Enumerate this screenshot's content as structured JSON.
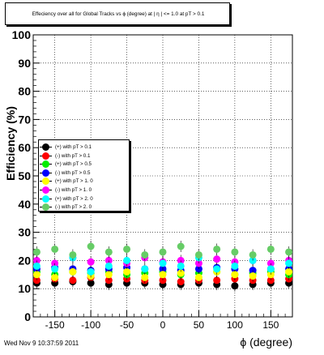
{
  "title": "Effeciency over all for Global Tracks vs ϕ (degree) at |  η | <= 1.0 at pT > 0.1",
  "datestamp": "Wed Nov  9 10:37:59 2011",
  "chart_data": {
    "type": "scatter",
    "xlabel": "ϕ (degree)",
    "ylabel": "Efficiency (%)",
    "xlim": [
      -180,
      180
    ],
    "ylim": [
      0,
      100
    ],
    "xticks": [
      -150,
      -100,
      -50,
      0,
      50,
      100,
      150
    ],
    "yticks": [
      0,
      10,
      20,
      30,
      40,
      50,
      60,
      70,
      80,
      90,
      100
    ],
    "grid": true,
    "legend_position": "middle-left",
    "series": [
      {
        "name": "(+) with pT > 0.1",
        "color": "#000000",
        "x": [
          -175,
          -150,
          -125,
          -100,
          -75,
          -50,
          -25,
          0,
          25,
          50,
          75,
          100,
          125,
          150,
          175
        ],
        "y": [
          12,
          12,
          12.5,
          12,
          11.5,
          12,
          12,
          11.5,
          11.5,
          12,
          11.5,
          11,
          11.5,
          12,
          12
        ]
      },
      {
        "name": "(-) with pT > 0.1",
        "color": "#ff0000",
        "x": [
          -175,
          -150,
          -125,
          -100,
          -75,
          -50,
          -25,
          0,
          25,
          50,
          75,
          100,
          125,
          150,
          175
        ],
        "y": [
          13,
          13.5,
          13,
          14,
          13,
          13.5,
          13,
          13,
          12.5,
          13,
          13,
          13.5,
          13,
          13,
          13.5
        ]
      },
      {
        "name": "(+) with pT > 0.5",
        "color": "#00ee00",
        "x": [
          -175,
          -150,
          -125,
          -100,
          -75,
          -50,
          -25,
          0,
          25,
          50,
          75,
          100,
          125,
          150,
          175
        ],
        "y": [
          16,
          15,
          16,
          15.5,
          16,
          15,
          15.5,
          16,
          15,
          15.5,
          16,
          15,
          15.5,
          16,
          15
        ]
      },
      {
        "name": "(-) with pT > 0.5",
        "color": "#0000ff",
        "x": [
          -175,
          -150,
          -125,
          -100,
          -75,
          -50,
          -25,
          0,
          25,
          50,
          75,
          100,
          125,
          150,
          175
        ],
        "y": [
          17,
          17.5,
          17,
          16.5,
          17,
          17.5,
          17,
          17,
          16.5,
          17,
          17.5,
          17,
          16.5,
          17,
          17
        ]
      },
      {
        "name": "(+) with pT > 1. 0",
        "color": "#ffff00",
        "x": [
          -175,
          -150,
          -125,
          -100,
          -75,
          -50,
          -25,
          0,
          25,
          50,
          75,
          100,
          125,
          150,
          175
        ],
        "y": [
          15,
          14,
          16,
          14.5,
          15,
          16,
          14,
          15,
          15.5,
          14,
          16,
          15,
          14.5,
          15,
          16
        ]
      },
      {
        "name": "(-) with pT > 1. 0",
        "color": "#ff00ff",
        "x": [
          -175,
          -150,
          -125,
          -100,
          -75,
          -50,
          -25,
          0,
          25,
          50,
          75,
          100,
          125,
          150,
          175
        ],
        "y": [
          20,
          19,
          21,
          19.5,
          20,
          19,
          21,
          19.5,
          20,
          19,
          20.5,
          19.5,
          20,
          19,
          20
        ]
      },
      {
        "name": "(+) with pT > 2. 0",
        "color": "#00ffff",
        "x": [
          -175,
          -150,
          -125,
          -100,
          -75,
          -50,
          -25,
          0,
          25,
          50,
          75,
          100,
          125,
          150,
          175
        ],
        "y": [
          18,
          17,
          21,
          16,
          18,
          20,
          17,
          19,
          18,
          21,
          17,
          18,
          20,
          17,
          19
        ]
      },
      {
        "name": "(-) with pT > 2. 0",
        "color": "#66cc66",
        "x": [
          -175,
          -150,
          -125,
          -100,
          -75,
          -50,
          -25,
          0,
          25,
          50,
          75,
          100,
          125,
          150,
          175
        ],
        "y": [
          23,
          24,
          22,
          25,
          23,
          24,
          22,
          23,
          25,
          22,
          24,
          23,
          22,
          24,
          23
        ]
      }
    ]
  }
}
